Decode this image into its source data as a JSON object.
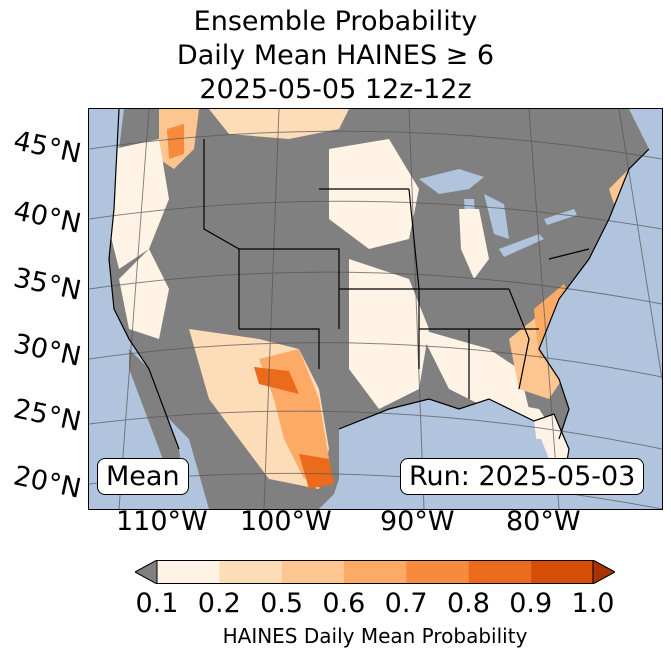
{
  "title": {
    "line1": "Ensemble Probability",
    "line2": "Daily Mean HAINES ≥ 6",
    "line3": "2025-05-05 12z-12z"
  },
  "map": {
    "lat_labels": [
      "45°N",
      "40°N",
      "35°N",
      "30°N",
      "25°N",
      "20°N"
    ],
    "lon_labels": [
      "110°W",
      "100°W",
      "90°W",
      "80°W"
    ],
    "mean_label": "Mean",
    "run_label": "Run: 2025-05-03",
    "colors": {
      "ocean": "#b0c4de",
      "no_data": "#808080",
      "lakes": "#b0c4de"
    }
  },
  "colorbar": {
    "ticks": [
      "0.1",
      "0.2",
      "0.5",
      "0.6",
      "0.7",
      "0.8",
      "0.9",
      "1.0"
    ],
    "colors": [
      "#fff3e6",
      "#fddcb8",
      "#fdc590",
      "#fdaa66",
      "#f88a3d",
      "#ec6a1b",
      "#d54d07"
    ],
    "under_color": "#808080",
    "over_color": "#a83400",
    "label": "HAINES Daily Mean Probability"
  }
}
